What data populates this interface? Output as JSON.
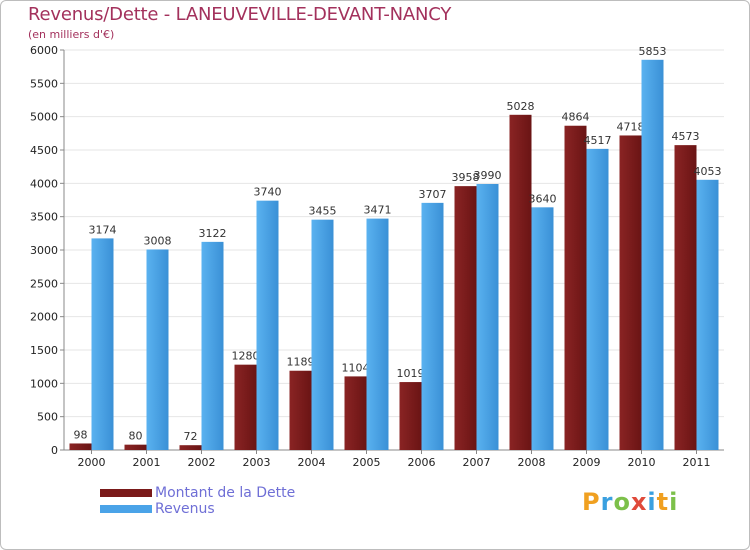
{
  "title": "Revenus/Dette - LANEUVEVILLE-DEVANT-NANCY",
  "subtitle": "(en milliers d'€)",
  "logo": "Proxiti",
  "colors": {
    "dette": "#7a1a1a",
    "revenus": "#4aa3e8",
    "title": "#a3315c",
    "legend_text": "#6f6fd6",
    "grid": "#e6e6e6"
  },
  "chart_data": {
    "type": "bar",
    "categories": [
      "2000",
      "2001",
      "2002",
      "2003",
      "2004",
      "2005",
      "2006",
      "2007",
      "2008",
      "2009",
      "2010",
      "2011"
    ],
    "series": [
      {
        "name": "Montant de la Dette",
        "values": [
          98,
          80,
          72,
          1280,
          1189,
          1104,
          1019,
          3958,
          5028,
          4864,
          4718,
          4573
        ]
      },
      {
        "name": "Revenus",
        "values": [
          3174,
          3008,
          3122,
          3740,
          3455,
          3471,
          3707,
          3990,
          3640,
          4517,
          5853,
          4053
        ]
      }
    ],
    "ylim": [
      0,
      6000
    ],
    "yticks": [
      0,
      500,
      1000,
      1500,
      2000,
      2500,
      3000,
      3500,
      4000,
      4500,
      5000,
      5500,
      6000
    ],
    "grid": true,
    "legend_position": "bottom-left"
  }
}
